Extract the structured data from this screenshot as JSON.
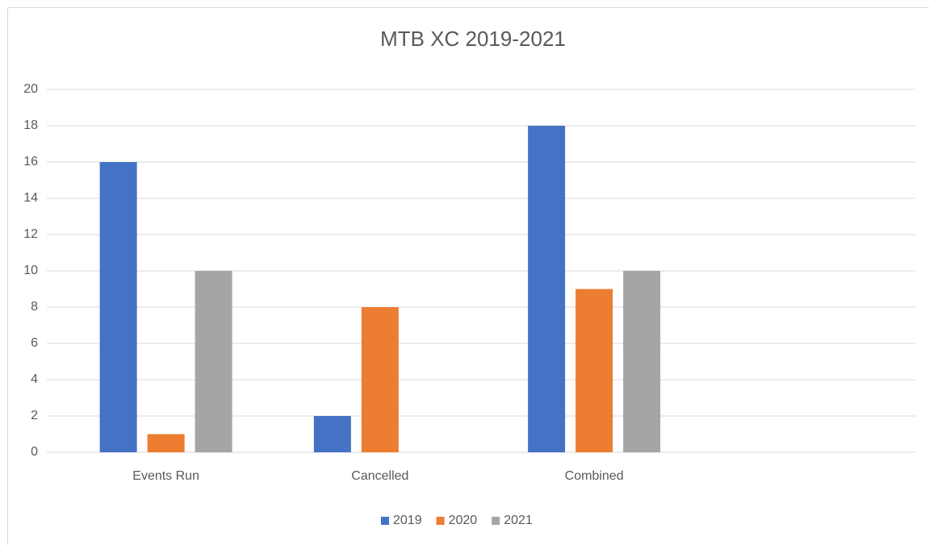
{
  "chart_data": {
    "type": "bar",
    "title": "MTB XC 2019-2021",
    "categories": [
      "Events Run",
      "Cancelled",
      "Combined",
      null
    ],
    "series": [
      {
        "name": "2019",
        "color": "#4472c4",
        "values": [
          16,
          2,
          18,
          null
        ]
      },
      {
        "name": "2020",
        "color": "#ed7d31",
        "values": [
          1,
          8,
          9,
          null
        ]
      },
      {
        "name": "2021",
        "color": "#a5a5a5",
        "values": [
          10,
          null,
          10,
          null
        ]
      }
    ],
    "ylim": [
      0,
      20
    ],
    "yticks": [
      0,
      2,
      4,
      6,
      8,
      10,
      12,
      14,
      16,
      18,
      20
    ],
    "grid": true,
    "legend": "bottom"
  }
}
